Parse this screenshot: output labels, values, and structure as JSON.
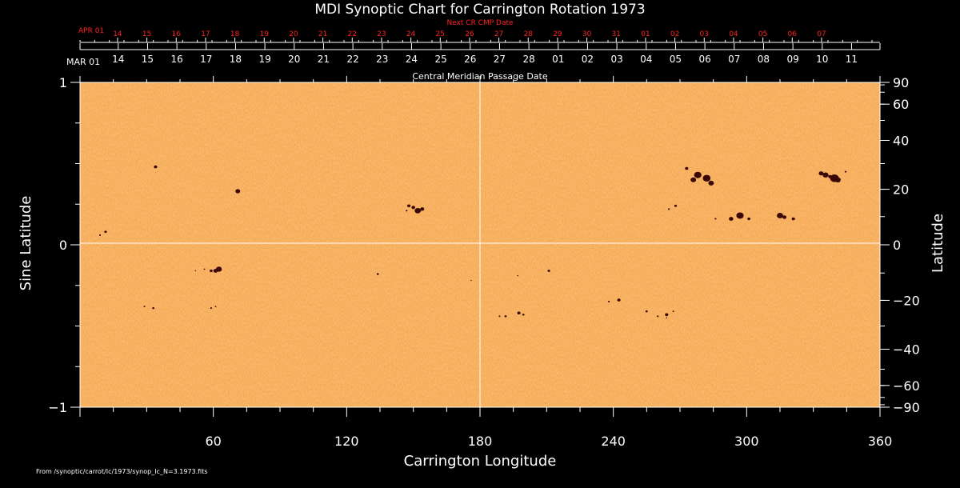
{
  "chart_data": {
    "type": "heatmap",
    "title": "MDI Synoptic Chart for Carrington Rotation 1973",
    "xlabel": "Carrington Longitude",
    "ylabel_left": "Sine Latitude",
    "ylabel_right": "Latitude",
    "xlim": [
      0,
      360
    ],
    "ylim": [
      -1,
      1
    ],
    "x_ticks": [
      "60",
      "120",
      "180",
      "240",
      "300",
      "360"
    ],
    "x_tick_values": [
      60,
      120,
      180,
      240,
      300,
      360
    ],
    "y_left_ticks": [
      "1",
      "0",
      "−1"
    ],
    "y_left_tick_values": [
      1,
      0,
      -1
    ],
    "y_right_ticks": [
      "90",
      "60",
      "40",
      "20",
      "0",
      "−20",
      "−40",
      "−60",
      "−90"
    ],
    "y_right_tick_values": [
      90,
      60,
      40,
      20,
      0,
      -20,
      -40,
      -60,
      -90
    ],
    "top_axis_label": "Central Meridian Passage Date",
    "top_axis_start": "MAR 01",
    "top_axis_dates": [
      "11",
      "10",
      "09",
      "08",
      "07",
      "06",
      "05",
      "04",
      "03",
      "02",
      "01",
      "28",
      "27",
      "26",
      "25",
      "24",
      "23",
      "22",
      "21",
      "20",
      "19",
      "18",
      "17",
      "16",
      "15",
      "14"
    ],
    "top_axis_date_longitudes": [
      347.2,
      334.0,
      320.8,
      307.6,
      294.4,
      281.2,
      268.0,
      254.8,
      241.6,
      228.4,
      215.2,
      202.0,
      188.8,
      175.6,
      162.4,
      149.2,
      136.0,
      122.8,
      109.6,
      96.4,
      83.2,
      70.0,
      56.8,
      43.6,
      30.4,
      17.2
    ],
    "next_cr_label": "Next CR CMP Date",
    "next_cr_start": "APR 01",
    "next_cr_dates": [
      "07",
      "06",
      "05",
      "04",
      "03",
      "02",
      "01",
      "31",
      "30",
      "29",
      "28",
      "27",
      "26",
      "25",
      "24",
      "23",
      "22",
      "21",
      "20",
      "19",
      "18",
      "17",
      "16",
      "15",
      "14"
    ],
    "next_cr_date_longitudes": [
      333.7,
      320.5,
      307.3,
      294.1,
      280.9,
      267.7,
      254.5,
      241.3,
      228.1,
      214.9,
      201.7,
      188.5,
      175.3,
      162.1,
      148.9,
      135.7,
      122.5,
      109.3,
      96.1,
      82.9,
      69.7,
      56.5,
      43.3,
      30.1,
      16.9
    ],
    "sunspots": [
      {
        "lon": 333.5,
        "sinlat": 0.44,
        "size": 2.6
      },
      {
        "lon": 335.5,
        "sinlat": 0.43,
        "size": 3.2
      },
      {
        "lon": 337.5,
        "sinlat": 0.42,
        "size": 2.0
      },
      {
        "lon": 339.5,
        "sinlat": 0.41,
        "size": 4.8
      },
      {
        "lon": 341.0,
        "sinlat": 0.4,
        "size": 3.2
      },
      {
        "lon": 344.5,
        "sinlat": 0.45,
        "size": 1.0
      },
      {
        "lon": 315.0,
        "sinlat": 0.18,
        "size": 3.4
      },
      {
        "lon": 317.0,
        "sinlat": 0.17,
        "size": 2.2
      },
      {
        "lon": 321.0,
        "sinlat": 0.16,
        "size": 1.8
      },
      {
        "lon": 211.0,
        "sinlat": -0.16,
        "size": 1.4
      },
      {
        "lon": 197.0,
        "sinlat": -0.19,
        "size": 0.7
      },
      {
        "lon": 176.0,
        "sinlat": -0.22,
        "size": 0.6
      },
      {
        "lon": 188.8,
        "sinlat": -0.44,
        "size": 0.9
      },
      {
        "lon": 191.5,
        "sinlat": -0.44,
        "size": 1.2
      },
      {
        "lon": 197.5,
        "sinlat": -0.42,
        "size": 1.8
      },
      {
        "lon": 199.5,
        "sinlat": -0.43,
        "size": 1.2
      },
      {
        "lon": 148.0,
        "sinlat": 0.24,
        "size": 1.8
      },
      {
        "lon": 150.0,
        "sinlat": 0.23,
        "size": 2.0
      },
      {
        "lon": 152.0,
        "sinlat": 0.21,
        "size": 3.4
      },
      {
        "lon": 154.0,
        "sinlat": 0.22,
        "size": 2.2
      },
      {
        "lon": 147.0,
        "sinlat": 0.21,
        "size": 1.0
      },
      {
        "lon": 134.0,
        "sinlat": -0.18,
        "size": 1.2
      },
      {
        "lon": 71.0,
        "sinlat": 0.33,
        "size": 2.6
      },
      {
        "lon": 59.0,
        "sinlat": -0.16,
        "size": 1.6
      },
      {
        "lon": 61.0,
        "sinlat": -0.16,
        "size": 2.4
      },
      {
        "lon": 62.5,
        "sinlat": -0.15,
        "size": 3.2
      },
      {
        "lon": 56.0,
        "sinlat": -0.15,
        "size": 0.8
      },
      {
        "lon": 52.0,
        "sinlat": -0.16,
        "size": 0.7
      },
      {
        "lon": 59.0,
        "sinlat": -0.39,
        "size": 1.0
      },
      {
        "lon": 61.0,
        "sinlat": -0.38,
        "size": 0.8
      },
      {
        "lon": 34.0,
        "sinlat": 0.48,
        "size": 1.8
      },
      {
        "lon": 11.5,
        "sinlat": 0.08,
        "size": 1.4
      },
      {
        "lon": 9.0,
        "sinlat": 0.06,
        "size": 1.0
      },
      {
        "lon": 33.0,
        "sinlat": -0.39,
        "size": 1.2
      },
      {
        "lon": 29.0,
        "sinlat": -0.38,
        "size": 0.9
      },
      {
        "lon": 260.0,
        "sinlat": -0.44,
        "size": 1.0
      },
      {
        "lon": 264.0,
        "sinlat": -0.43,
        "size": 1.8
      },
      {
        "lon": 264.0,
        "sinlat": -0.45,
        "size": 0.7
      },
      {
        "lon": 267.0,
        "sinlat": -0.41,
        "size": 0.9
      },
      {
        "lon": 255.0,
        "sinlat": -0.41,
        "size": 1.2
      },
      {
        "lon": 273.0,
        "sinlat": 0.47,
        "size": 1.8
      },
      {
        "lon": 278.0,
        "sinlat": 0.43,
        "size": 4.0
      },
      {
        "lon": 282.0,
        "sinlat": 0.41,
        "size": 4.2
      },
      {
        "lon": 284.0,
        "sinlat": 0.38,
        "size": 3.0
      },
      {
        "lon": 276.0,
        "sinlat": 0.4,
        "size": 3.0
      },
      {
        "lon": 297.0,
        "sinlat": 0.18,
        "size": 4.0
      },
      {
        "lon": 293.0,
        "sinlat": 0.16,
        "size": 2.4
      },
      {
        "lon": 301.0,
        "sinlat": 0.16,
        "size": 1.6
      },
      {
        "lon": 286.0,
        "sinlat": 0.16,
        "size": 1.0
      },
      {
        "lon": 268.0,
        "sinlat": 0.24,
        "size": 1.4
      },
      {
        "lon": 265.0,
        "sinlat": 0.22,
        "size": 1.0
      },
      {
        "lon": 238.0,
        "sinlat": -0.35,
        "size": 1.0
      },
      {
        "lon": 242.5,
        "sinlat": -0.34,
        "size": 1.8
      }
    ],
    "colors": {
      "background": "#000000",
      "map_base": "#f5a24a",
      "map_light": "#fbc27a",
      "map_dark": "#e8842a",
      "spot": "#3a0606",
      "grid": "#ffffff",
      "red_axis": "#ff2020"
    }
  },
  "footer_text": "From /synoptic/carrot/Ic/1973/synop_Ic_N=3.1973.fits"
}
